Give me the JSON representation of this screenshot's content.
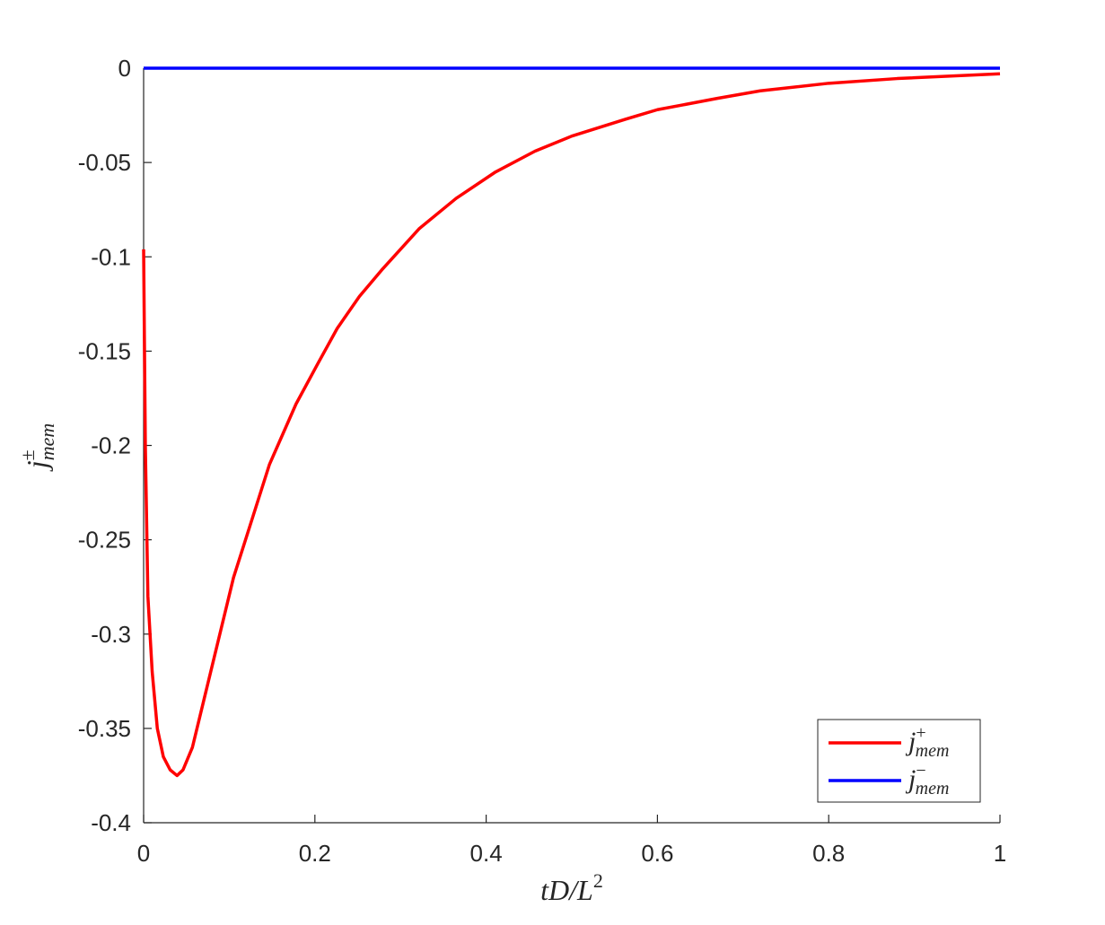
{
  "chart_data": {
    "type": "line",
    "xlabel": {
      "text": "tD/L",
      "sup": "2"
    },
    "ylabel": {
      "base": "j",
      "sup": "±",
      "sub": "mem"
    },
    "xlim": [
      0,
      1
    ],
    "xticks": [
      0,
      0.2,
      0.4,
      0.6,
      0.8,
      1
    ],
    "ylim": [
      -0.4,
      0
    ],
    "yticks": [
      -0.4,
      -0.35,
      -0.3,
      -0.25,
      -0.2,
      -0.15,
      -0.1,
      -0.05,
      0
    ],
    "legend": "lower right",
    "series": [
      {
        "name": {
          "base": "j",
          "sup": "+",
          "sub": "mem"
        },
        "color": "#ff0000",
        "x": [
          0,
          0.002,
          0.005,
          0.01,
          0.016,
          0.023,
          0.031,
          0.039,
          0.046,
          0.057,
          0.073,
          0.105,
          0.126,
          0.147,
          0.178,
          0.203,
          0.226,
          0.252,
          0.278,
          0.322,
          0.365,
          0.411,
          0.457,
          0.5,
          0.563,
          0.6,
          0.67,
          0.72,
          0.8,
          0.88,
          1
        ],
        "values": [
          -0.096,
          -0.2,
          -0.28,
          -0.32,
          -0.35,
          -0.365,
          -0.372,
          -0.375,
          -0.372,
          -0.36,
          -0.33,
          -0.27,
          -0.24,
          -0.21,
          -0.178,
          -0.157,
          -0.138,
          -0.121,
          -0.107,
          -0.085,
          -0.069,
          -0.055,
          -0.044,
          -0.036,
          -0.027,
          -0.022,
          -0.016,
          -0.012,
          -0.008,
          -0.0055,
          -0.003
        ]
      },
      {
        "name": {
          "base": "j",
          "sup": "−",
          "sub": "mem"
        },
        "color": "#0000ff",
        "x": [
          0,
          1
        ],
        "values": [
          0,
          0
        ]
      }
    ]
  }
}
